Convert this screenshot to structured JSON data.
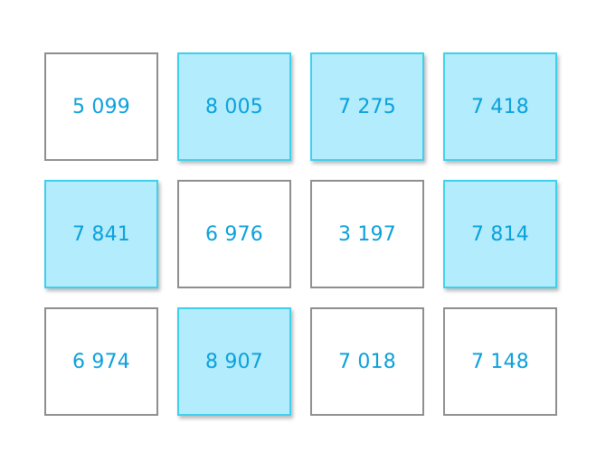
{
  "colors": {
    "text": "#0aa0db",
    "selected_fill": "#b3ecfd",
    "selected_border": "#3fd0ec",
    "unselected_border": "#8f8f8f"
  },
  "tiles": [
    {
      "value": "5 099",
      "selected": false
    },
    {
      "value": "8 005",
      "selected": true
    },
    {
      "value": "7 275",
      "selected": true
    },
    {
      "value": "7 418",
      "selected": true
    },
    {
      "value": "7 841",
      "selected": true
    },
    {
      "value": "6 976",
      "selected": false
    },
    {
      "value": "3 197",
      "selected": false
    },
    {
      "value": "7 814",
      "selected": true
    },
    {
      "value": "6 974",
      "selected": false
    },
    {
      "value": "8 907",
      "selected": true
    },
    {
      "value": "7 018",
      "selected": false
    },
    {
      "value": "7 148",
      "selected": false
    }
  ]
}
